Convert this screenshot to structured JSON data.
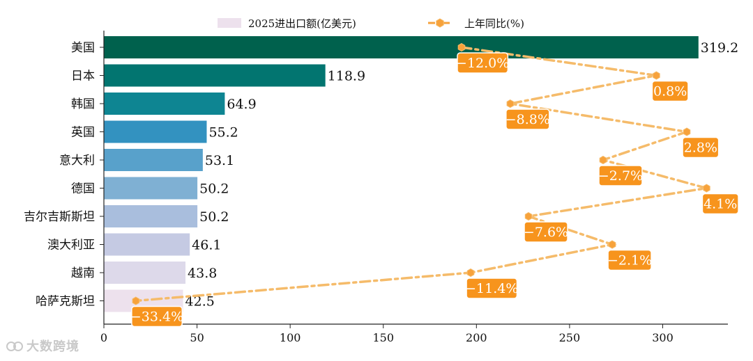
{
  "chart_data": {
    "type": "bar+line",
    "title": "",
    "categories": [
      "美国",
      "日本",
      "韩国",
      "英国",
      "意大利",
      "德国",
      "吉尔吉斯斯坦",
      "澳大利亚",
      "越南",
      "哈萨克斯坦"
    ],
    "bar_series": {
      "name": "2025进出口额(亿美元)",
      "values": [
        319.2,
        118.9,
        64.9,
        55.2,
        53.1,
        50.2,
        50.2,
        46.1,
        43.8,
        42.5
      ],
      "value_labels": [
        "319.2",
        "118.9",
        "64.9",
        "55.2",
        "53.1",
        "50.2",
        "50.2",
        "46.1",
        "43.8",
        "42.5"
      ],
      "colors": [
        "#00614d",
        "#027570",
        "#0e8592",
        "#3392c0",
        "#58a1cb",
        "#7fb0d3",
        "#a9bedd",
        "#c5cae3",
        "#ddd9ea",
        "#ede1ed"
      ]
    },
    "line_series": {
      "name": "上年同比(%)",
      "values": [
        -12.0,
        0.8,
        -8.8,
        2.8,
        -2.7,
        4.1,
        -7.6,
        -2.1,
        -11.4,
        -33.4
      ],
      "labels": [
        "−12.0%",
        "0.8%",
        "−8.8%",
        "2.8%",
        "−2.7%",
        "4.1%",
        "−7.6%",
        "−2.1%",
        "−11.4%",
        "−33.4%"
      ],
      "color": "#f7a23b",
      "line_color": "#f5bb6a",
      "label_bg": "#f7941d"
    },
    "xlim": [
      0,
      335
    ],
    "xticks": [
      0,
      50,
      100,
      150,
      200,
      250,
      300
    ],
    "xtick_labels": [
      "0",
      "50",
      "100",
      "150",
      "200",
      "250",
      "300"
    ],
    "line_xlim": [
      -35.5,
      5.5
    ],
    "legend": [
      "2025进出口额(亿美元)",
      "上年同比(%)"
    ]
  },
  "watermark": "大数跨境"
}
